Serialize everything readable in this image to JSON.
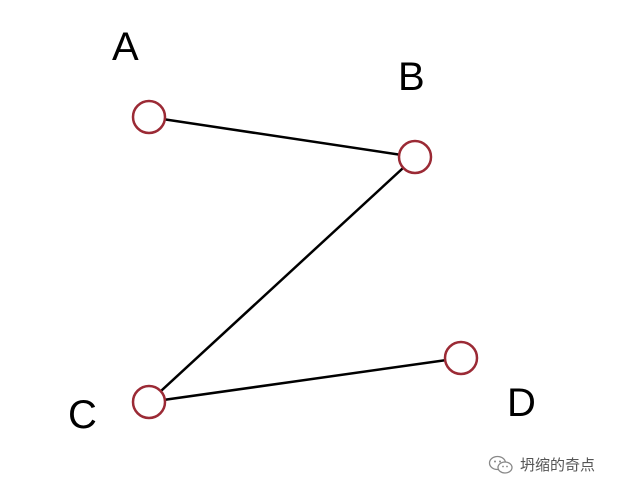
{
  "diagram": {
    "nodes": [
      {
        "id": "A",
        "label": "A"
      },
      {
        "id": "B",
        "label": "B"
      },
      {
        "id": "C",
        "label": "C"
      },
      {
        "id": "D",
        "label": "D"
      }
    ],
    "edges": [
      {
        "from": "A",
        "to": "B"
      },
      {
        "from": "B",
        "to": "C"
      },
      {
        "from": "C",
        "to": "D"
      }
    ],
    "colors": {
      "node_stroke": "#9b2a35",
      "node_fill": "#ffffff",
      "edge": "#000000",
      "label": "#000000"
    }
  },
  "watermark": {
    "icon": "wechat-icon",
    "text": "坍缩的奇点"
  }
}
